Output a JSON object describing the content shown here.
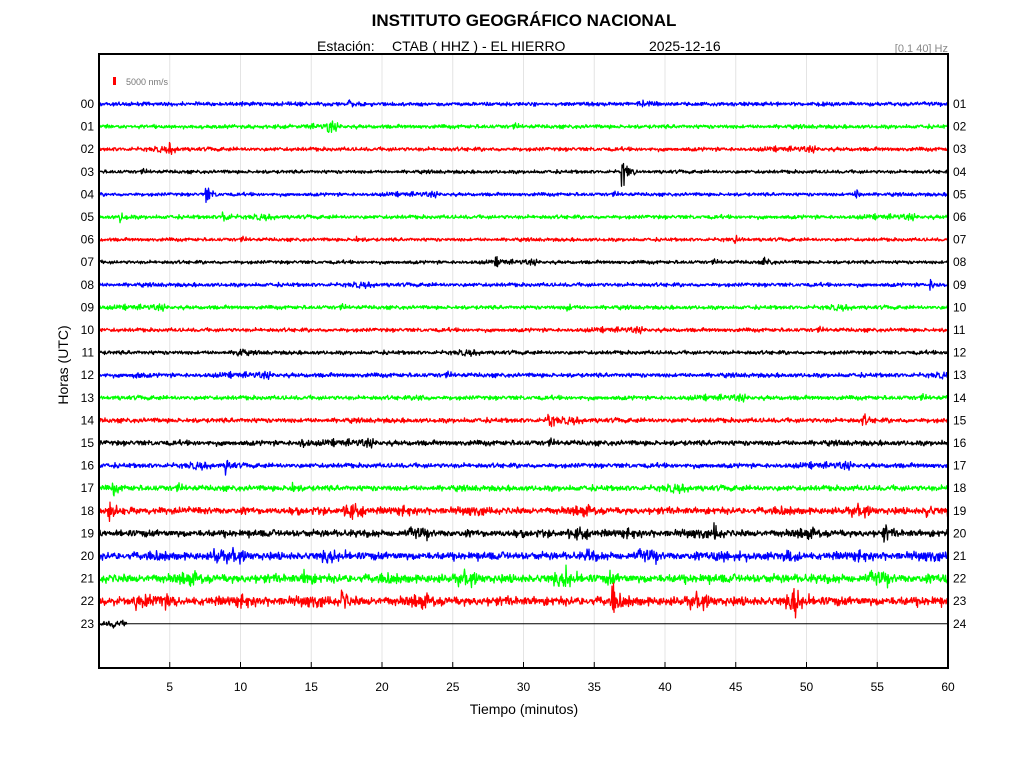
{
  "header": {
    "title": "INSTITUTO GEOGRÁFICO NACIONAL",
    "station_label": "Estación:",
    "station": "CTAB ( HHZ ) - EL HIERRO",
    "date": "2025-12-16",
    "filter": "[0.1 40] Hz"
  },
  "chart_data": {
    "type": "line",
    "subtype": "helicorder",
    "xlabel": "Tiempo (minutos)",
    "ylabel": "Horas (UTC)",
    "xlim": [
      0,
      60
    ],
    "x_ticks": [
      5,
      10,
      15,
      20,
      25,
      30,
      35,
      40,
      45,
      50,
      55,
      60
    ],
    "grid": true,
    "scale_bar": {
      "label": "5000 nm/s",
      "color": "#ff0000"
    },
    "left_hour_labels": [
      "00",
      "01",
      "02",
      "03",
      "04",
      "05",
      "06",
      "07",
      "08",
      "09",
      "10",
      "11",
      "12",
      "13",
      "14",
      "15",
      "16",
      "17",
      "18",
      "19",
      "20",
      "21",
      "22",
      "23"
    ],
    "right_hour_labels": [
      "01",
      "02",
      "03",
      "04",
      "05",
      "06",
      "07",
      "08",
      "09",
      "10",
      "11",
      "12",
      "13",
      "14",
      "15",
      "16",
      "17",
      "18",
      "19",
      "20",
      "21",
      "22",
      "23",
      "24"
    ],
    "trace_colors": [
      "#0000ff",
      "#00ff00",
      "#ff0000",
      "#000000"
    ],
    "last_trace_end_minute": 2,
    "relative_noise_level": [
      0.9,
      0.9,
      0.9,
      0.8,
      0.8,
      0.9,
      0.8,
      0.8,
      0.9,
      0.9,
      0.9,
      0.9,
      1.0,
      1.0,
      1.1,
      1.2,
      1.1,
      1.3,
      1.6,
      1.6,
      1.8,
      2.0,
      2.1,
      1.2
    ],
    "events": [
      {
        "hour": 0,
        "minute": 17.5,
        "amplitude": 1.8
      },
      {
        "hour": 1,
        "minute": 16.2,
        "amplitude": 2.5
      },
      {
        "hour": 2,
        "minute": 5.0,
        "amplitude": 2.0
      },
      {
        "hour": 3,
        "minute": 37.0,
        "amplitude": 6.0
      },
      {
        "hour": 4,
        "minute": 7.6,
        "amplitude": 4.0
      },
      {
        "hour": 4,
        "minute": 53.5,
        "amplitude": 2.2
      },
      {
        "hour": 5,
        "minute": 1.5,
        "amplitude": 2.5
      },
      {
        "hour": 5,
        "minute": 8.8,
        "amplitude": 3.0
      },
      {
        "hour": 6,
        "minute": 18.0,
        "amplitude": 1.8
      },
      {
        "hour": 6,
        "minute": 45.0,
        "amplitude": 1.8
      },
      {
        "hour": 7,
        "minute": 28.0,
        "amplitude": 1.8
      },
      {
        "hour": 7,
        "minute": 47.0,
        "amplitude": 2.2
      },
      {
        "hour": 8,
        "minute": 58.8,
        "amplitude": 2.0
      },
      {
        "hour": 9,
        "minute": 33.0,
        "amplitude": 2.2
      },
      {
        "hour": 11,
        "minute": 9.8,
        "amplitude": 3.0
      },
      {
        "hour": 12,
        "minute": 2.5,
        "amplitude": 2.2
      },
      {
        "hour": 13,
        "minute": 22.5,
        "amplitude": 2.0
      },
      {
        "hour": 14,
        "minute": 31.8,
        "amplitude": 3.5
      },
      {
        "hour": 14,
        "minute": 54.0,
        "amplitude": 2.5
      },
      {
        "hour": 15,
        "minute": 14.3,
        "amplitude": 2.5
      },
      {
        "hour": 16,
        "minute": 9.0,
        "amplitude": 3.0
      },
      {
        "hour": 17,
        "minute": 1.0,
        "amplitude": 2.2
      },
      {
        "hour": 17,
        "minute": 13.5,
        "amplitude": 3.2
      },
      {
        "hour": 18,
        "minute": 0.7,
        "amplitude": 4.5
      },
      {
        "hour": 18,
        "minute": 17.5,
        "amplitude": 3.0
      },
      {
        "hour": 18,
        "minute": 58.5,
        "amplitude": 3.0
      },
      {
        "hour": 19,
        "minute": 43.5,
        "amplitude": 3.0
      },
      {
        "hour": 19,
        "minute": 55.5,
        "amplitude": 3.5
      },
      {
        "hour": 20,
        "minute": 8.2,
        "amplitude": 4.0
      },
      {
        "hour": 20,
        "minute": 34.5,
        "amplitude": 3.0
      },
      {
        "hour": 21,
        "minute": 14.5,
        "amplitude": 5.0
      },
      {
        "hour": 21,
        "minute": 33.0,
        "amplitude": 3.5
      },
      {
        "hour": 21,
        "minute": 36.0,
        "amplitude": 3.0
      },
      {
        "hour": 22,
        "minute": 17.2,
        "amplitude": 4.5
      },
      {
        "hour": 22,
        "minute": 36.3,
        "amplitude": 5.5
      },
      {
        "hour": 22,
        "minute": 49.0,
        "amplitude": 8.0
      },
      {
        "hour": 23,
        "minute": 1.0,
        "amplitude": 1.5
      }
    ]
  }
}
